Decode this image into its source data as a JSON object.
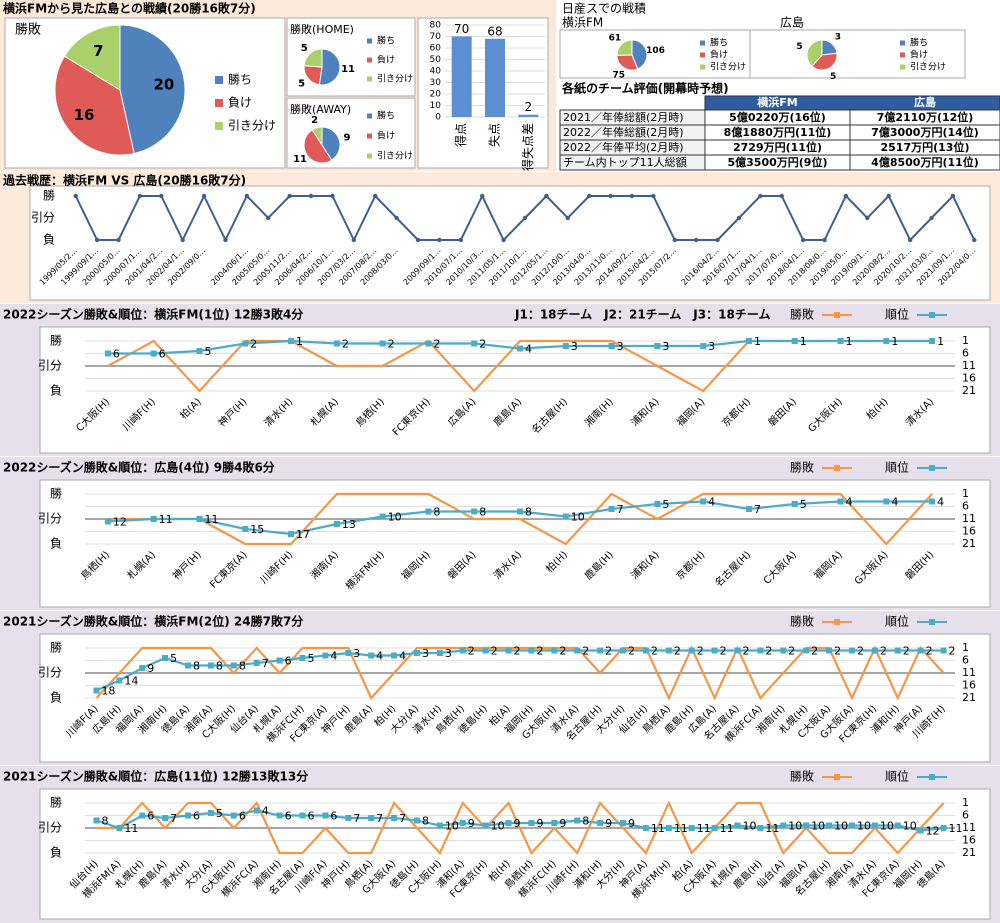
{
  "title": "横浜FMから見た広島との戦績(20勝16敗7分)",
  "nissan_title": "日産スでの戦積",
  "table": {
    "title": "各紙のチーム評価(開幕時予想)",
    "header": [
      "横浜FM",
      "広島"
    ],
    "rows": [
      [
        "2021／年俸総額(2月時)",
        "5億0220万(16位)",
        "7億2110万(12位)"
      ],
      [
        "2022／年俸総額(2月時)",
        "8億1880万円(11位)",
        "7億3000万円(14位)"
      ],
      [
        "2022／年俸平均(2月時)",
        "2729万円(11位)",
        "2517万円(13位)"
      ],
      [
        "チーム内トップ11人総額",
        "5億3500万円(9位)",
        "4億8500万円(11位)"
      ]
    ]
  },
  "chart_data": [
    {
      "type": "pie",
      "title": "勝敗",
      "categories": [
        "勝ち",
        "負け",
        "引き分け"
      ],
      "values": [
        20,
        16,
        7
      ],
      "colors": [
        "#4f81bd",
        "#e05a57",
        "#a9d06a"
      ]
    },
    {
      "type": "pie",
      "title": "勝敗(HOME)",
      "categories": [
        "勝ち",
        "負け",
        "引き分け"
      ],
      "values": [
        11,
        5,
        5
      ],
      "colors": [
        "#4f81bd",
        "#e05a57",
        "#a9d06a"
      ]
    },
    {
      "type": "pie",
      "title": "勝敗(AWAY)",
      "categories": [
        "勝ち",
        "負け",
        "引き分け"
      ],
      "values": [
        9,
        11,
        2
      ],
      "colors": [
        "#4f81bd",
        "#e05a57",
        "#a9d06a"
      ]
    },
    {
      "type": "bar",
      "categories": [
        "得点",
        "失点",
        "得失点差"
      ],
      "values": [
        70,
        68,
        2
      ],
      "color": "#5b8fd1",
      "ylim": [
        0,
        80
      ],
      "yticks": [
        0,
        10,
        20,
        30,
        40,
        50,
        60,
        70,
        80
      ],
      "grid": true
    },
    {
      "type": "pie",
      "title": "横浜FM",
      "categories": [
        "勝ち",
        "負け",
        "引き分け"
      ],
      "values": [
        106,
        75,
        61
      ],
      "colors": [
        "#4f81bd",
        "#e05a57",
        "#a9d06a"
      ]
    },
    {
      "type": "pie",
      "title": "広島",
      "categories": [
        "勝ち",
        "負け",
        "引き分け"
      ],
      "values": [
        3,
        5,
        5
      ],
      "colors": [
        "#4f81bd",
        "#e05a57",
        "#a9d06a"
      ]
    },
    {
      "type": "line",
      "title": "過去戦歴：横浜FM VS 広島(20勝16敗7分)",
      "categories": [
        "1999/05/2…",
        "1999/09/1…",
        "2000/05/0…",
        "2000/07/1…",
        "2001/04/2…",
        "2002/04/1…",
        "2002/09/0…",
        null,
        "2004/06/1…",
        "2005/05/0…",
        "2005/11/2…",
        "2006/04/2…",
        "2006/10/1…",
        "2007/03/2…",
        "2007/08/2…",
        "2008/03/0…",
        null,
        "2009/09/1…",
        "2010/07/1…",
        "2010/10/3…",
        "2011/05/1…",
        "2011/10/1…",
        "2012/05/1…",
        "2012/10/0…",
        "2013/04/0…",
        "2013/11/0…",
        "2014/09/2…",
        "2015/04/2…",
        "2015/07/2…",
        null,
        "2016/04/2…",
        "2016/07/1…",
        "2017/04/1…",
        "2017/07/0…",
        "2018/04/1…",
        "2018/08/0…",
        "2019/05/0…",
        "2019/09/1…",
        "2020/08/2…",
        "2020/10/2…",
        "2021/03/0…",
        "2021/09/1…",
        "2022/04/0…"
      ],
      "values": [
        1,
        -1,
        -1,
        1,
        1,
        -1,
        1,
        -1,
        1,
        0,
        1,
        1,
        1,
        -1,
        1,
        0,
        -1,
        -1,
        -1,
        1,
        -1,
        0,
        1,
        0,
        1,
        1,
        1,
        1,
        -1,
        -1,
        -1,
        0,
        1,
        1,
        -1,
        -1,
        1,
        0,
        1,
        -1,
        0,
        1,
        -1
      ],
      "color": "#3f5f8c",
      "ylim": [
        -1,
        1
      ],
      "yticks": [
        {
          "value": 1,
          "label": "勝"
        },
        {
          "value": 0,
          "label": "引分"
        },
        {
          "value": -1,
          "label": "負"
        }
      ]
    },
    {
      "type": "line",
      "title": "2022シーズン勝敗&順位：横浜FM(1位) 12勝3敗4分",
      "note": "J1：18チーム　J2：21チーム　J3：18チーム",
      "categories": [
        "C大阪(H)",
        "川崎F(H)",
        "柏(A)",
        "神戸(H)",
        "清水(H)",
        "札幌(A)",
        "鳥栖(H)",
        "FC東京(H)",
        "広島(A)",
        "鹿島(A)",
        "名古屋(H)",
        "湘南(H)",
        "浦和(A)",
        "福岡(A)",
        "京都(H)",
        "磐田(A)",
        "G大阪(H)",
        "柏(H)",
        "清水(A)"
      ],
      "series": [
        {
          "name": "勝敗",
          "color": "#f79646",
          "values": [
            0,
            1,
            -1,
            1,
            1,
            0,
            0,
            1,
            -1,
            1,
            1,
            1,
            0,
            -1,
            1,
            null,
            null,
            null,
            null
          ]
        },
        {
          "name": "順位",
          "color": "#4bacc6",
          "axis": "y2",
          "data_labels": true,
          "values": [
            6,
            6,
            5,
            2,
            1,
            2,
            2,
            2,
            2,
            4,
            3,
            3,
            3,
            3,
            1,
            1,
            1,
            1,
            1
          ]
        }
      ],
      "ylim": [
        -1,
        1
      ],
      "yticks": [
        {
          "value": 1,
          "label": "勝"
        },
        {
          "value": 0,
          "label": "引分"
        },
        {
          "value": -1,
          "label": "負"
        }
      ],
      "y2lim": [
        21,
        1
      ],
      "y2ticks": [
        1,
        6,
        11,
        16,
        21
      ],
      "grid": true
    },
    {
      "type": "line",
      "title": "2022シーズン勝敗&順位：広島(4位) 9勝4敗6分",
      "categories": [
        "鳥栖(H)",
        "札幌(A)",
        "神戸(H)",
        "FC東京(A)",
        "川崎F(H)",
        "湘南(A)",
        "横浜FM(H)",
        "福岡(H)",
        "磐田(A)",
        "清水(A)",
        "柏(H)",
        "鹿島(H)",
        "浦和(A)",
        "京都(H)",
        "名古屋(H)",
        "C大阪(A)",
        "福岡(A)",
        "G大阪(A)",
        "磐田(H)"
      ],
      "series": [
        {
          "name": "勝敗",
          "color": "#f79646",
          "values": [
            0,
            0,
            0,
            -1,
            -1,
            1,
            1,
            1,
            0,
            0,
            -1,
            1,
            0,
            1,
            1,
            1,
            1,
            -1,
            1
          ]
        },
        {
          "name": "順位",
          "color": "#4bacc6",
          "axis": "y2",
          "data_labels": true,
          "values": [
            12,
            11,
            11,
            15,
            17,
            13,
            10,
            8,
            8,
            8,
            10,
            7,
            5,
            4,
            7,
            5,
            4,
            4,
            4
          ]
        }
      ],
      "ylim": [
        -1,
        1
      ],
      "yticks": [
        {
          "value": 1,
          "label": "勝"
        },
        {
          "value": 0,
          "label": "引分"
        },
        {
          "value": -1,
          "label": "負"
        }
      ],
      "y2lim": [
        21,
        1
      ],
      "y2ticks": [
        1,
        6,
        11,
        16,
        21
      ],
      "grid": true
    },
    {
      "type": "line",
      "title": "2021シーズン勝敗&順位：横浜FM(2位) 24勝7敗7分",
      "categories": [
        "川崎F(A)",
        "広島(H)",
        "福岡(A)",
        "湘南(H)",
        "徳島(A)",
        "湘南(A)",
        "C大阪(H)",
        "仙台(A)",
        "札幌(A)",
        "横浜FC(H)",
        "FC東京(A)",
        "神戸(H)",
        "鹿島(A)",
        "柏(H)",
        "大分(A)",
        "清水(H)",
        "鳥栖(H)",
        "徳島(H)",
        "柏(A)",
        "福岡(H)",
        "G大阪(H)",
        "清水(A)",
        "名古屋(H)",
        "大分(H)",
        "仙台(H)",
        "鳥栖(A)",
        "鹿島(H)",
        "広島(A)",
        "名古屋(A)",
        "横浜FC(A)",
        "湘南(H)",
        "札幌(H)",
        "C大阪(A)",
        "G大阪(A)",
        "FC東京(H)",
        "浦和(H)",
        "神戸(A)",
        "川崎F(H)"
      ],
      "series": [
        {
          "name": "勝敗",
          "color": "#f79646",
          "values": [
            -1,
            0,
            1,
            1,
            1,
            1,
            0,
            1,
            0,
            1,
            1,
            1,
            -1,
            0,
            1,
            1,
            1,
            1,
            1,
            1,
            1,
            1,
            0,
            1,
            1,
            -1,
            1,
            -1,
            1,
            -1,
            0,
            1,
            1,
            -1,
            1,
            -1,
            1,
            0
          ]
        },
        {
          "name": "順位",
          "color": "#4bacc6",
          "axis": "y2",
          "data_labels": true,
          "values": [
            18,
            14,
            9,
            5,
            8,
            8,
            8,
            7,
            6,
            5,
            4,
            3,
            4,
            4,
            3,
            3,
            2,
            2,
            2,
            2,
            2,
            2,
            2,
            2,
            2,
            2,
            2,
            2,
            2,
            2,
            2,
            2,
            2,
            2,
            2,
            2,
            2,
            2
          ]
        }
      ],
      "ylim": [
        -1,
        1
      ],
      "yticks": [
        {
          "value": 1,
          "label": "勝"
        },
        {
          "value": 0,
          "label": "引分"
        },
        {
          "value": -1,
          "label": "負"
        }
      ],
      "y2lim": [
        21,
        1
      ],
      "y2ticks": [
        1,
        6,
        11,
        16,
        21
      ],
      "grid": true
    },
    {
      "type": "line",
      "title": "2021シーズン勝敗&順位：広島(11位) 12勝13敗13分",
      "categories": [
        "仙台(H)",
        "横浜FM(A)",
        "札幌(H)",
        "鹿島(A)",
        "清水(H)",
        "大分(A)",
        "G大阪(H)",
        "横浜FC(A)",
        "湘南(H)",
        "名古屋(A)",
        "川崎F(A)",
        "神戸(H)",
        "鳥栖(A)",
        "G大阪(A)",
        "徳島(H)",
        "C大阪(H)",
        "浦和(A)",
        "FC東京(H)",
        "柏(H)",
        "鳥栖(H)",
        "横浜FC(H)",
        "川崎F(H)",
        "浦和(H)",
        "大分(H)",
        "神戸(A)",
        "横浜FM(H)",
        "柏(A)",
        "C大阪(A)",
        "札幌(A)",
        "鹿島(H)",
        "仙台(A)",
        "福岡(A)",
        "名古屋(H)",
        "湘南(A)",
        "清水(A)",
        "FC東京(A)",
        "福岡(H)",
        "徳島(A)"
      ],
      "series": [
        {
          "name": "勝敗",
          "color": "#f79646",
          "values": [
            0,
            0,
            1,
            0,
            1,
            1,
            0,
            1,
            -1,
            -1,
            0,
            -1,
            -1,
            1,
            0,
            -1,
            1,
            0,
            1,
            -1,
            0,
            -1,
            1,
            0,
            -1,
            1,
            -1,
            0,
            1,
            1,
            -1,
            0,
            -1,
            -1,
            0,
            -1,
            0,
            1
          ]
        },
        {
          "name": "順位",
          "color": "#4bacc6",
          "axis": "y2",
          "data_labels": true,
          "values": [
            8,
            11,
            6,
            7,
            6,
            5,
            6,
            4,
            6,
            6,
            6,
            7,
            7,
            7,
            8,
            10,
            9,
            10,
            9,
            9,
            9,
            8,
            9,
            9,
            11,
            11,
            11,
            11,
            10,
            11,
            10,
            10,
            10,
            10,
            10,
            10,
            12,
            11
          ]
        }
      ],
      "ylim": [
        -1,
        1
      ],
      "yticks": [
        {
          "value": 1,
          "label": "勝"
        },
        {
          "value": 0,
          "label": "引分"
        },
        {
          "value": -1,
          "label": "負"
        }
      ],
      "y2lim": [
        21,
        1
      ],
      "y2ticks": [
        1,
        6,
        11,
        16,
        21
      ],
      "grid": true
    }
  ]
}
